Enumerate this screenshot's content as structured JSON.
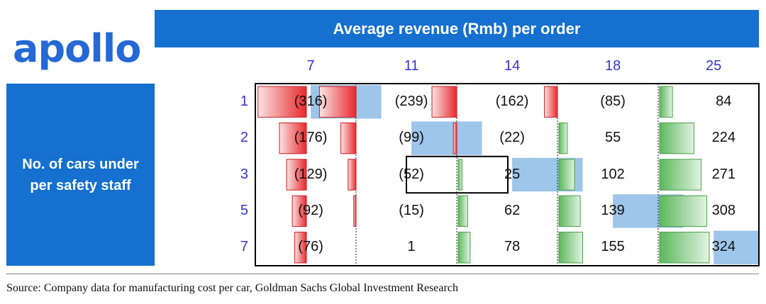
{
  "logo_text": "apollo",
  "chart_data": {
    "type": "table",
    "title": "Average revenue (Rmb) per order",
    "row_header": "No. of cars under per safety staff",
    "columns": [
      "7",
      "11",
      "14",
      "18",
      "25"
    ],
    "rows": [
      "1",
      "2",
      "3",
      "5",
      "7"
    ],
    "values": [
      [
        -316,
        -239,
        -162,
        -85,
        84
      ],
      [
        -176,
        -99,
        -22,
        55,
        224
      ],
      [
        -129,
        -52,
        25,
        102,
        271
      ],
      [
        -92,
        -15,
        62,
        139,
        308
      ],
      [
        -76,
        1,
        78,
        155,
        324
      ]
    ],
    "labels": [
      [
        "(316)",
        "(239)",
        "(162)",
        "(85)",
        "84"
      ],
      [
        "(176)",
        "(99)",
        "(22)",
        "55",
        "224"
      ],
      [
        "(129)",
        "(52)",
        "25",
        "102",
        "271"
      ],
      [
        "(92)",
        "(15)",
        "62",
        "139",
        "308"
      ],
      [
        "(76)",
        "1",
        "78",
        "155",
        "324"
      ]
    ],
    "highlighted_cells": [
      [
        0,
        0
      ],
      [
        1,
        1
      ],
      [
        2,
        2
      ],
      [
        3,
        3
      ],
      [
        4,
        4
      ]
    ],
    "boxed_cell": [
      2,
      2
    ],
    "negative_color": "#e8282c",
    "positive_color": "#5cb85c",
    "highlight_color": "#9ec5ea"
  },
  "source": "Source: Company data for manufacturing cost per car, Goldman Sachs Global Investment Research"
}
